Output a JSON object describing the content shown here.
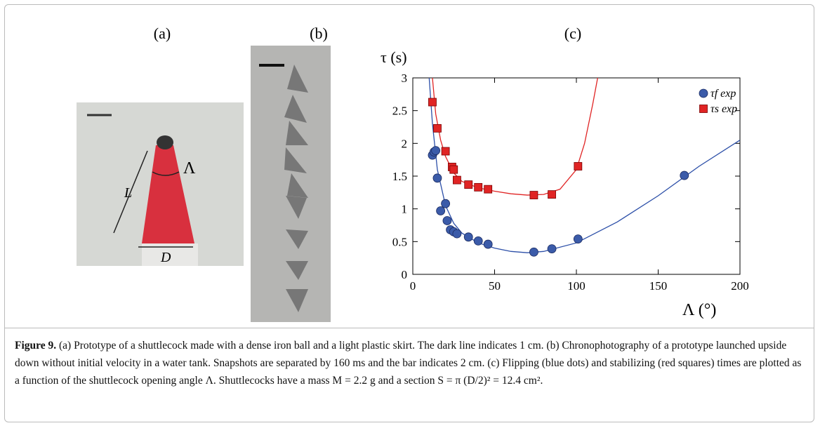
{
  "panels": {
    "a": {
      "label": "(a)",
      "annotations": [
        "L",
        "D",
        "Λ"
      ]
    },
    "b": {
      "label": "(b)"
    },
    "c": {
      "label": "(c)"
    }
  },
  "chart_data": {
    "type": "scatter",
    "ylabel": "τ (s)",
    "xlabel": "Λ (°)",
    "xlim": [
      0,
      200
    ],
    "ylim": [
      0,
      3
    ],
    "xticks": [
      0,
      50,
      100,
      150,
      200
    ],
    "yticks": [
      0,
      0.5,
      1,
      1.5,
      2,
      2.5,
      3
    ],
    "grid": false,
    "legend": "top-right",
    "series": [
      {
        "name": "τf exp",
        "color": "#3b5ba9",
        "marker": "circle",
        "x": [
          12,
          13,
          14,
          15,
          17,
          20,
          21,
          23,
          25,
          27,
          34,
          40,
          46,
          74,
          85,
          101,
          166
        ],
        "values": [
          1.82,
          1.87,
          1.89,
          1.47,
          0.97,
          1.08,
          0.82,
          0.68,
          0.65,
          0.62,
          0.57,
          0.51,
          0.46,
          0.34,
          0.39,
          0.54,
          1.51
        ]
      },
      {
        "name": "τs exp",
        "color": "#e02424",
        "marker": "square",
        "x": [
          12,
          15,
          20,
          24,
          25,
          27,
          34,
          40,
          46,
          74,
          85,
          101
        ],
        "values": [
          2.63,
          2.23,
          1.88,
          1.64,
          1.6,
          1.44,
          1.37,
          1.33,
          1.3,
          1.21,
          1.22,
          1.65
        ]
      },
      {
        "color": "#2c4fa8",
        "marker": "line",
        "x": [
          10,
          12,
          15,
          20,
          25,
          30,
          40,
          50,
          60,
          70,
          80,
          100,
          125,
          150,
          175,
          200
        ],
        "values": [
          3.0,
          2.3,
          1.6,
          1.05,
          0.78,
          0.63,
          0.48,
          0.4,
          0.35,
          0.33,
          0.35,
          0.48,
          0.8,
          1.2,
          1.65,
          2.05
        ]
      },
      {
        "color": "#e02424",
        "marker": "line",
        "x": [
          12,
          14,
          17,
          20,
          25,
          30,
          40,
          50,
          60,
          70,
          80,
          90,
          100,
          105,
          110,
          113
        ],
        "values": [
          3.0,
          2.45,
          2.05,
          1.8,
          1.55,
          1.42,
          1.32,
          1.27,
          1.23,
          1.21,
          1.22,
          1.3,
          1.6,
          2.0,
          2.6,
          3.0
        ]
      }
    ]
  },
  "caption": {
    "label": "Figure 9.",
    "text": "(a) Prototype of a shuttlecock made with a dense iron ball and a light plastic skirt. The dark line indicates 1 cm. (b) Chronophotography of a prototype launched upside down without initial velocity in a water tank. Snapshots are separated by 160 ms and the bar indicates 2 cm. (c) Flipping (blue dots) and stabilizing (red squares) times are plotted as a function of the shuttlecock opening angle Λ. Shuttlecocks have a mass M = 2.2 g and a section S = π (D/2)² = 12.4 cm²."
  }
}
